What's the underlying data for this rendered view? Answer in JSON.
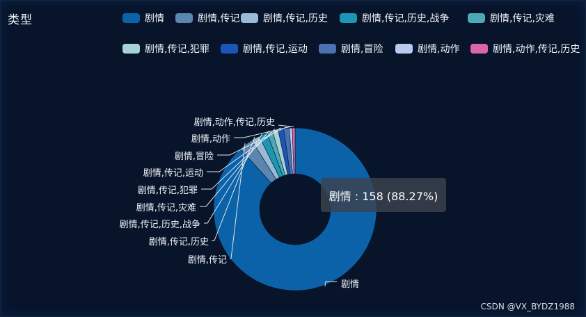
{
  "chart_data": {
    "type": "pie",
    "variant": "donut",
    "title": "类型",
    "legend_position": "top-right",
    "series": [
      {
        "name": "剧情",
        "value": 158,
        "color": "#0b62a8"
      },
      {
        "name": "剧情,传记",
        "value": 5,
        "color": "#5a86b0"
      },
      {
        "name": "剧情,传记,历史",
        "value": 3,
        "color": "#9bbad6"
      },
      {
        "name": "剧情,传记,历史,战争",
        "value": 3,
        "color": "#1b97b3"
      },
      {
        "name": "剧情,传记,灾难",
        "value": 2,
        "color": "#4ea8b8"
      },
      {
        "name": "剧情,传记,犯罪",
        "value": 2,
        "color": "#a6d3d6"
      },
      {
        "name": "剧情,传记,运动",
        "value": 2,
        "color": "#1c55b8"
      },
      {
        "name": "剧情,冒险",
        "value": 2,
        "color": "#4a72b0"
      },
      {
        "name": "剧情,动作",
        "value": 1,
        "color": "#b8ccf0"
      },
      {
        "name": "剧情,动作,传记,历史",
        "value": 1,
        "color": "#d966a8"
      }
    ],
    "tooltip": {
      "text": "剧情 : 158 (88.27%)"
    }
  },
  "watermark": "CSDN @VX_BYDZ1988"
}
